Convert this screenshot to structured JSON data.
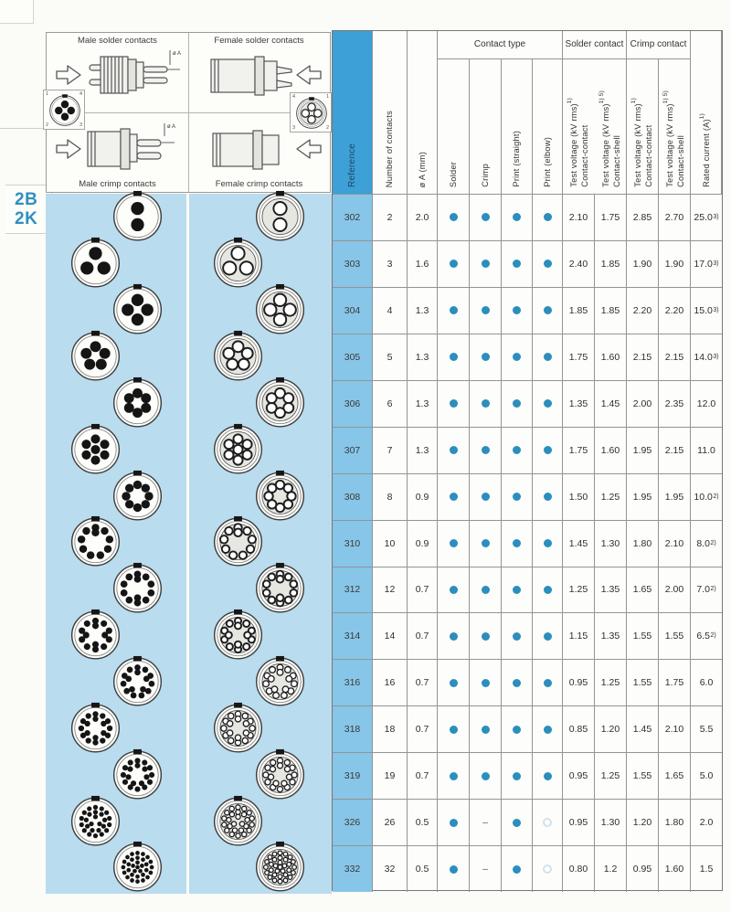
{
  "colors": {
    "panel_blue": "#b9dcee",
    "reference_header_blue": "#3da0d6",
    "reference_cell_blue": "#87c6e8",
    "available_dot": "#2b8ebd",
    "optional_hollow_ring": "#cfe3ec"
  },
  "series_label": {
    "line1": "2B",
    "line2": "2K"
  },
  "diagrams": {
    "male_solder_label": "Male solder contacts",
    "female_solder_label": "Female solder contacts",
    "male_crimp_label": "Male crimp contacts",
    "female_crimp_label": "Female crimp contacts",
    "dim_label": "ø A",
    "male_inset_numbers": [
      "1",
      "4",
      "2",
      "3"
    ],
    "female_inset_numbers": [
      "4",
      "1",
      "3",
      "2"
    ]
  },
  "table": {
    "headers": {
      "reference": "Reference",
      "num_contacts": "Number of contacts",
      "diameter": "ø A (mm)",
      "contact_type_group": "Contact type",
      "solder_group": "Solder contact",
      "crimp_group": "Crimp contact",
      "solder": "Solder",
      "crimp": "Crimp",
      "print_straight": "Print (straight)",
      "print_elbow": "Print (elbow)",
      "test_voltage": "Test voltage (kV rms)",
      "sup_contact_contact": "1)",
      "sup_contact_shell": "1) 5)",
      "contact_contact": "Contact-contact",
      "contact_shell": "Contact-shell",
      "rated_current": "Rated current (A)",
      "rated_sup": "1)"
    },
    "rows": [
      {
        "ref": "302",
        "contacts": 2,
        "dia": "2.0",
        "solder": "dot",
        "crimp": "dot",
        "print_straight": "dot",
        "print_elbow": "dot",
        "solder_cc": "2.10",
        "solder_shell": "1.75",
        "crimp_cc": "2.85",
        "crimp_shell": "2.70",
        "rated": "25.0",
        "rated_sup": "3)"
      },
      {
        "ref": "303",
        "contacts": 3,
        "dia": "1.6",
        "solder": "dot",
        "crimp": "dot",
        "print_straight": "dot",
        "print_elbow": "dot",
        "solder_cc": "2.40",
        "solder_shell": "1.85",
        "crimp_cc": "1.90",
        "crimp_shell": "1.90",
        "rated": "17.0",
        "rated_sup": "3)"
      },
      {
        "ref": "304",
        "contacts": 4,
        "dia": "1.3",
        "solder": "dot",
        "crimp": "dot",
        "print_straight": "dot",
        "print_elbow": "dot",
        "solder_cc": "1.85",
        "solder_shell": "1.85",
        "crimp_cc": "2.20",
        "crimp_shell": "2.20",
        "rated": "15.0",
        "rated_sup": "3)"
      },
      {
        "ref": "305",
        "contacts": 5,
        "dia": "1.3",
        "solder": "dot",
        "crimp": "dot",
        "print_straight": "dot",
        "print_elbow": "dot",
        "solder_cc": "1.75",
        "solder_shell": "1.60",
        "crimp_cc": "2.15",
        "crimp_shell": "2.15",
        "rated": "14.0",
        "rated_sup": "3)"
      },
      {
        "ref": "306",
        "contacts": 6,
        "dia": "1.3",
        "solder": "dot",
        "crimp": "dot",
        "print_straight": "dot",
        "print_elbow": "dot",
        "solder_cc": "1.35",
        "solder_shell": "1.45",
        "crimp_cc": "2.00",
        "crimp_shell": "2.35",
        "rated": "12.0",
        "rated_sup": ""
      },
      {
        "ref": "307",
        "contacts": 7,
        "dia": "1.3",
        "solder": "dot",
        "crimp": "dot",
        "print_straight": "dot",
        "print_elbow": "dot",
        "solder_cc": "1.75",
        "solder_shell": "1.60",
        "crimp_cc": "1.95",
        "crimp_shell": "2.15",
        "rated": "11.0",
        "rated_sup": ""
      },
      {
        "ref": "308",
        "contacts": 8,
        "dia": "0.9",
        "solder": "dot",
        "crimp": "dot",
        "print_straight": "dot",
        "print_elbow": "dot",
        "solder_cc": "1.50",
        "solder_shell": "1.25",
        "crimp_cc": "1.95",
        "crimp_shell": "1.95",
        "rated": "10.0",
        "rated_sup": "2)"
      },
      {
        "ref": "310",
        "contacts": 10,
        "dia": "0.9",
        "solder": "dot",
        "crimp": "dot",
        "print_straight": "dot",
        "print_elbow": "dot",
        "solder_cc": "1.45",
        "solder_shell": "1.30",
        "crimp_cc": "1.80",
        "crimp_shell": "2.10",
        "rated": "8.0",
        "rated_sup": "2)"
      },
      {
        "ref": "312",
        "contacts": 12,
        "dia": "0.7",
        "solder": "dot",
        "crimp": "dot",
        "print_straight": "dot",
        "print_elbow": "dot",
        "solder_cc": "1.25",
        "solder_shell": "1.35",
        "crimp_cc": "1.65",
        "crimp_shell": "2.00",
        "rated": "7.0",
        "rated_sup": "2)"
      },
      {
        "ref": "314",
        "contacts": 14,
        "dia": "0.7",
        "solder": "dot",
        "crimp": "dot",
        "print_straight": "dot",
        "print_elbow": "dot",
        "solder_cc": "1.15",
        "solder_shell": "1.35",
        "crimp_cc": "1.55",
        "crimp_shell": "1.55",
        "rated": "6.5",
        "rated_sup": "2)"
      },
      {
        "ref": "316",
        "contacts": 16,
        "dia": "0.7",
        "solder": "dot",
        "crimp": "dot",
        "print_straight": "dot",
        "print_elbow": "dot",
        "solder_cc": "0.95",
        "solder_shell": "1.25",
        "crimp_cc": "1.55",
        "crimp_shell": "1.75",
        "rated": "6.0",
        "rated_sup": ""
      },
      {
        "ref": "318",
        "contacts": 18,
        "dia": "0.7",
        "solder": "dot",
        "crimp": "dot",
        "print_straight": "dot",
        "print_elbow": "dot",
        "solder_cc": "0.85",
        "solder_shell": "1.20",
        "crimp_cc": "1.45",
        "crimp_shell": "2.10",
        "rated": "5.5",
        "rated_sup": ""
      },
      {
        "ref": "319",
        "contacts": 19,
        "dia": "0.7",
        "solder": "dot",
        "crimp": "dot",
        "print_straight": "dot",
        "print_elbow": "dot",
        "solder_cc": "0.95",
        "solder_shell": "1.25",
        "crimp_cc": "1.55",
        "crimp_shell": "1.65",
        "rated": "5.0",
        "rated_sup": ""
      },
      {
        "ref": "326",
        "contacts": 26,
        "dia": "0.5",
        "solder": "dot",
        "crimp": "dash",
        "print_straight": "dot",
        "print_elbow": "hollow",
        "solder_cc": "0.95",
        "solder_shell": "1.30",
        "crimp_cc": "1.20",
        "crimp_shell": "1.80",
        "rated": "2.0",
        "rated_sup": ""
      },
      {
        "ref": "332",
        "contacts": 32,
        "dia": "0.5",
        "solder": "dot",
        "crimp": "dash",
        "print_straight": "dot",
        "print_elbow": "hollow",
        "solder_cc": "0.80",
        "solder_shell": "1.2",
        "crimp_cc": "0.95",
        "crimp_shell": "1.60",
        "rated": "1.5",
        "rated_sup": ""
      }
    ]
  }
}
